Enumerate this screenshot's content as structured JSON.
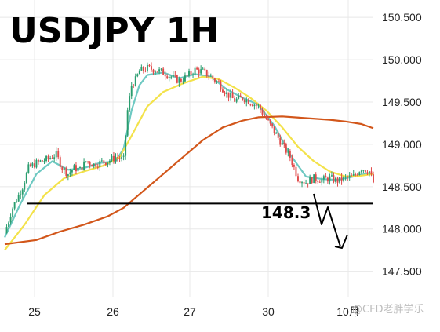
{
  "chart_data": {
    "type": "candlestick",
    "title": "USDJPY 1H",
    "xlabel": "",
    "ylabel": "",
    "ylim": [
      147.2,
      150.65
    ],
    "y_ticks": [
      "150.500",
      "150.000",
      "149.500",
      "149.000",
      "148.500",
      "148.000",
      "147.500"
    ],
    "y_tick_values": [
      150.5,
      150.0,
      149.5,
      149.0,
      148.5,
      148.0,
      147.5
    ],
    "x_ticks": [
      "25",
      "26",
      "27",
      "30",
      "10月"
    ],
    "grid": true,
    "legend": "none",
    "series": [
      {
        "type": "ohlc",
        "close_path": [
          [
            0,
            147.95
          ],
          [
            4,
            148.25
          ],
          [
            9,
            148.5
          ],
          [
            12,
            148.72
          ],
          [
            16,
            148.78
          ],
          [
            21,
            148.82
          ],
          [
            26,
            148.88
          ],
          [
            29,
            148.72
          ],
          [
            32,
            148.65
          ],
          [
            35,
            148.72
          ],
          [
            38,
            148.7
          ],
          [
            41,
            148.8
          ],
          [
            45,
            148.76
          ],
          [
            49,
            148.79
          ],
          [
            52,
            148.8
          ],
          [
            56,
            148.85
          ],
          [
            60,
            148.82
          ],
          [
            62,
            149.4
          ],
          [
            64,
            149.7
          ],
          [
            66,
            149.76
          ],
          [
            68,
            149.87
          ],
          [
            70,
            149.88
          ],
          [
            72,
            149.9
          ],
          [
            76,
            149.88
          ],
          [
            80,
            149.85
          ],
          [
            84,
            149.8
          ],
          [
            88,
            149.75
          ],
          [
            92,
            149.8
          ],
          [
            96,
            149.88
          ],
          [
            100,
            149.86
          ],
          [
            104,
            149.8
          ],
          [
            108,
            149.72
          ],
          [
            112,
            149.6
          ],
          [
            116,
            149.52
          ],
          [
            120,
            149.55
          ],
          [
            124,
            149.5
          ],
          [
            128,
            149.45
          ],
          [
            132,
            149.3
          ],
          [
            136,
            149.15
          ],
          [
            140,
            149.0
          ],
          [
            144,
            148.85
          ],
          [
            148,
            148.6
          ],
          [
            152,
            148.55
          ],
          [
            156,
            148.6
          ],
          [
            160,
            148.58
          ],
          [
            164,
            148.6
          ],
          [
            168,
            148.57
          ],
          [
            172,
            148.6
          ],
          [
            176,
            148.62
          ],
          [
            180,
            148.72
          ],
          [
            184,
            148.68
          ],
          [
            186,
            148.55
          ]
        ]
      },
      {
        "type": "moving-average",
        "color": "#6ec9c2",
        "points": [
          [
            0,
            147.9
          ],
          [
            8,
            148.3
          ],
          [
            16,
            148.65
          ],
          [
            24,
            148.8
          ],
          [
            32,
            148.7
          ],
          [
            40,
            148.72
          ],
          [
            48,
            148.78
          ],
          [
            56,
            148.8
          ],
          [
            60,
            148.95
          ],
          [
            64,
            149.4
          ],
          [
            68,
            149.7
          ],
          [
            72,
            149.82
          ],
          [
            80,
            149.85
          ],
          [
            88,
            149.78
          ],
          [
            96,
            149.83
          ],
          [
            104,
            149.8
          ],
          [
            112,
            149.65
          ],
          [
            120,
            149.55
          ],
          [
            128,
            149.47
          ],
          [
            136,
            149.22
          ],
          [
            144,
            148.88
          ],
          [
            152,
            148.62
          ],
          [
            160,
            148.59
          ],
          [
            168,
            148.58
          ],
          [
            176,
            148.62
          ],
          [
            184,
            148.66
          ],
          [
            186,
            148.64
          ]
        ]
      },
      {
        "type": "moving-average",
        "color": "#f3e24a",
        "points": [
          [
            0,
            147.75
          ],
          [
            10,
            148.05
          ],
          [
            20,
            148.4
          ],
          [
            30,
            148.6
          ],
          [
            40,
            148.68
          ],
          [
            50,
            148.75
          ],
          [
            58,
            148.85
          ],
          [
            64,
            149.1
          ],
          [
            72,
            149.45
          ],
          [
            80,
            149.62
          ],
          [
            90,
            149.72
          ],
          [
            100,
            149.8
          ],
          [
            108,
            149.77
          ],
          [
            116,
            149.67
          ],
          [
            124,
            149.55
          ],
          [
            132,
            149.4
          ],
          [
            140,
            149.2
          ],
          [
            148,
            148.97
          ],
          [
            156,
            148.8
          ],
          [
            164,
            148.68
          ],
          [
            172,
            148.62
          ],
          [
            180,
            148.63
          ],
          [
            186,
            148.65
          ]
        ]
      },
      {
        "type": "moving-average",
        "color": "#d2561a",
        "points": [
          [
            0,
            147.82
          ],
          [
            16,
            147.87
          ],
          [
            28,
            147.97
          ],
          [
            40,
            148.05
          ],
          [
            52,
            148.15
          ],
          [
            60,
            148.25
          ],
          [
            70,
            148.45
          ],
          [
            80,
            148.65
          ],
          [
            90,
            148.85
          ],
          [
            100,
            149.05
          ],
          [
            110,
            149.2
          ],
          [
            120,
            149.28
          ],
          [
            128,
            149.32
          ],
          [
            140,
            149.33
          ],
          [
            152,
            149.31
          ],
          [
            164,
            149.29
          ],
          [
            172,
            149.27
          ],
          [
            180,
            149.24
          ],
          [
            186,
            149.19
          ]
        ]
      }
    ],
    "annotations": [
      {
        "type": "hline",
        "y": 148.3,
        "label": "148.3"
      },
      {
        "type": "arrow",
        "direction": "down"
      }
    ],
    "watermark": "@CFD老胖学乐"
  }
}
